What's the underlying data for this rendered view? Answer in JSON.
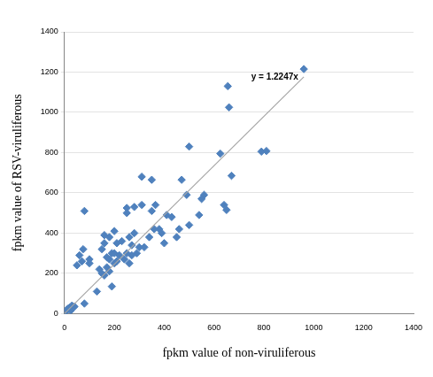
{
  "chart_data": {
    "type": "scatter",
    "x_label": "fpkm value of non-viruliferous",
    "y_label": "fpkm value of RSV-viruliferous",
    "annotation": "y = 1.2247x",
    "series": [
      {
        "type": "scatter",
        "color": "#4f81bd",
        "marker": "diamond",
        "x": [
          960,
          655,
          660,
          500,
          310,
          350,
          80,
          625,
          790,
          810,
          670,
          470,
          490,
          560,
          550,
          640,
          650,
          540,
          410,
          430,
          280,
          250,
          250,
          365,
          350,
          310,
          380,
          360,
          390,
          200,
          160,
          180,
          210,
          260,
          280,
          230,
          340,
          300,
          320,
          270,
          290,
          250,
          450,
          460,
          500,
          400,
          75,
          60,
          70,
          100,
          100,
          50,
          130,
          80,
          190,
          150,
          160,
          170,
          180,
          200,
          210,
          170,
          190,
          150,
          160,
          220,
          240,
          260,
          270,
          180,
          140,
          200,
          20,
          10,
          30,
          5,
          40,
          15,
          0,
          25
        ],
        "values": [
          1215,
          1130,
          1025,
          830,
          680,
          665,
          510,
          795,
          805,
          808,
          685,
          665,
          590,
          590,
          570,
          540,
          515,
          490,
          490,
          480,
          530,
          525,
          500,
          540,
          510,
          540,
          420,
          420,
          400,
          410,
          390,
          380,
          350,
          380,
          400,
          360,
          380,
          330,
          330,
          340,
          300,
          300,
          380,
          420,
          440,
          350,
          320,
          290,
          260,
          270,
          250,
          240,
          110,
          50,
          135,
          200,
          190,
          230,
          210,
          250,
          260,
          280,
          300,
          320,
          350,
          290,
          270,
          250,
          290,
          270,
          220,
          300,
          30,
          20,
          40,
          10,
          35,
          25,
          5,
          15
        ]
      },
      {
        "type": "line",
        "color": "#a6a6a6",
        "line_style": "solid",
        "x": [
          0,
          960
        ],
        "values": [
          0,
          1176
        ]
      }
    ],
    "xlim": [
      0,
      1400
    ],
    "xticks": [
      0,
      200,
      400,
      600,
      800,
      1000,
      1200,
      1400
    ],
    "ylim": [
      0,
      1400
    ],
    "yticks": [
      0,
      200,
      400,
      600,
      800,
      1000,
      1200,
      1400
    ],
    "grid": true
  }
}
